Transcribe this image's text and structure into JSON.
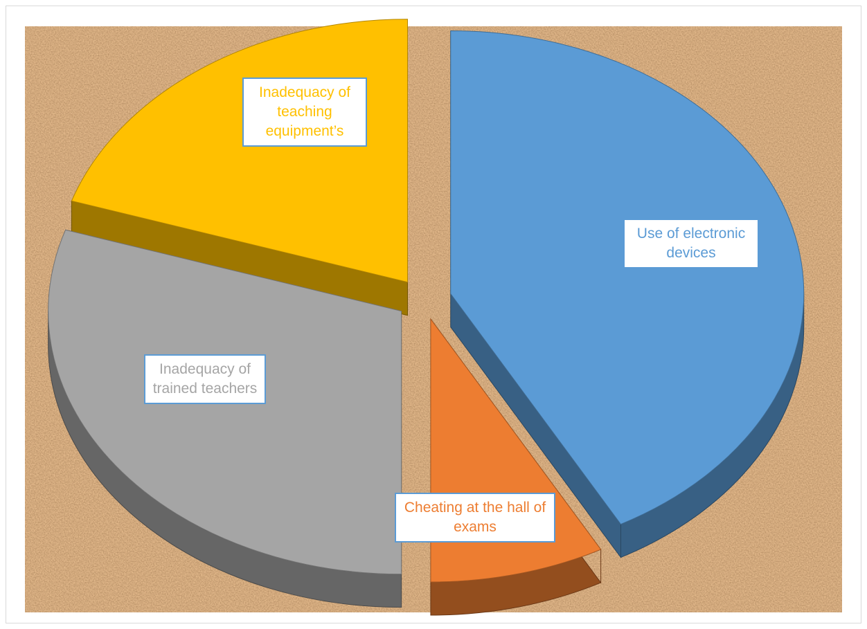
{
  "chart_data": {
    "type": "pie",
    "variant": "3d-exploded",
    "title": "",
    "background": "cork-texture",
    "slices": [
      {
        "label": "Use of electronic devices",
        "value": 42,
        "color": "#5b9bd5",
        "label_color": "#5b9bd5"
      },
      {
        "label": "Cheating at the hall of exams",
        "value": 8,
        "color": "#ed7d31",
        "label_color": "#ed7d31"
      },
      {
        "label": "Inadequacy of trained teachers",
        "value": 30,
        "color": "#a5a5a5",
        "label_color": "#a5a5a5"
      },
      {
        "label": "Inadequacy of teaching equipment’s",
        "value": 20,
        "color": "#ffc000",
        "label_color": "#ffc000"
      }
    ],
    "legend": "none",
    "data_labels": "category name"
  }
}
